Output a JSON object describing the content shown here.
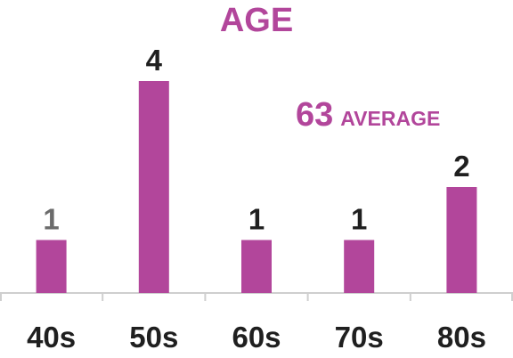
{
  "chart_data": {
    "type": "bar",
    "title": "AGE",
    "categories": [
      "40s",
      "50s",
      "60s",
      "70s",
      "80s"
    ],
    "values": [
      1,
      4,
      1,
      1,
      2
    ],
    "data_labels": [
      "1",
      "4",
      "1",
      "1",
      "2"
    ],
    "ylim": [
      0,
      4
    ],
    "xlabel": "",
    "ylabel": "",
    "grid": false,
    "legend": "none",
    "annotation": {
      "value": "63",
      "label": "AVERAGE"
    },
    "colors": {
      "bar": "#b2469b",
      "title": "#b2469b",
      "annotation": "#b2469b",
      "axis": "#cfcfcf",
      "category_label": "#1f1f1f",
      "data_label": "#1f1f1f",
      "data_label_first": "#6b6b6b"
    }
  }
}
